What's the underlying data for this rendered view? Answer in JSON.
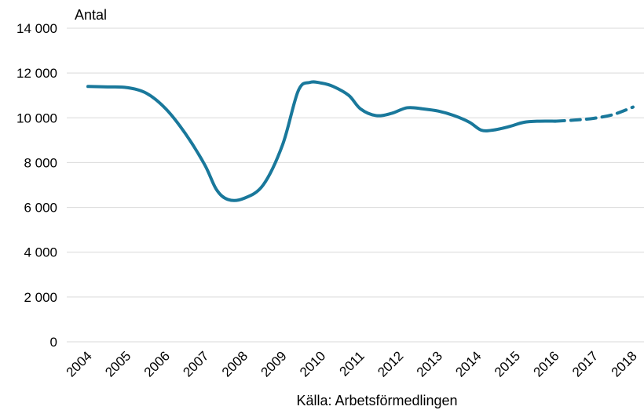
{
  "chart_data": {
    "type": "line",
    "title": "",
    "ylabel": "Antal",
    "xlabel": "",
    "source": "Källa: Arbetsförmedlingen",
    "ylim": [
      0,
      14000
    ],
    "yticks": [
      0,
      2000,
      4000,
      6000,
      8000,
      10000,
      12000,
      14000
    ],
    "ytick_labels": [
      "0",
      "2 000",
      "4 000",
      "6 000",
      "8 000",
      "10 000",
      "12 000",
      "14 000"
    ],
    "categories": [
      "2004",
      "2005",
      "2006",
      "2007",
      "2008",
      "2009",
      "2010",
      "2011",
      "2012",
      "2013",
      "2014",
      "2015",
      "2016",
      "2017",
      "2018"
    ],
    "grid": true,
    "color": "#19789b",
    "series": [
      {
        "style": "solid",
        "x": [
          2004.0,
          2004.5,
          2005.0,
          2005.5,
          2006.0,
          2006.5,
          2007.0,
          2007.3,
          2007.6,
          2008.0,
          2008.5,
          2009.0,
          2009.4,
          2009.7,
          2010.0,
          2010.3,
          2010.7,
          2011.0,
          2011.4,
          2011.8,
          2012.2,
          2012.6,
          2013.0,
          2013.4,
          2013.8,
          2014.1,
          2014.4,
          2014.8,
          2015.2,
          2015.6,
          2016.0
        ],
        "y": [
          11400,
          11380,
          11350,
          11100,
          10400,
          9300,
          7900,
          6800,
          6350,
          6400,
          7000,
          8800,
          11200,
          11580,
          11550,
          11400,
          11000,
          10400,
          10100,
          10200,
          10450,
          10400,
          10300,
          10100,
          9800,
          9450,
          9450,
          9600,
          9800,
          9850,
          9850
        ]
      },
      {
        "style": "dashed",
        "x": [
          2016.0,
          2016.5,
          2017.0,
          2017.5,
          2018.0
        ],
        "y": [
          9850,
          9900,
          9980,
          10150,
          10480
        ]
      }
    ]
  }
}
